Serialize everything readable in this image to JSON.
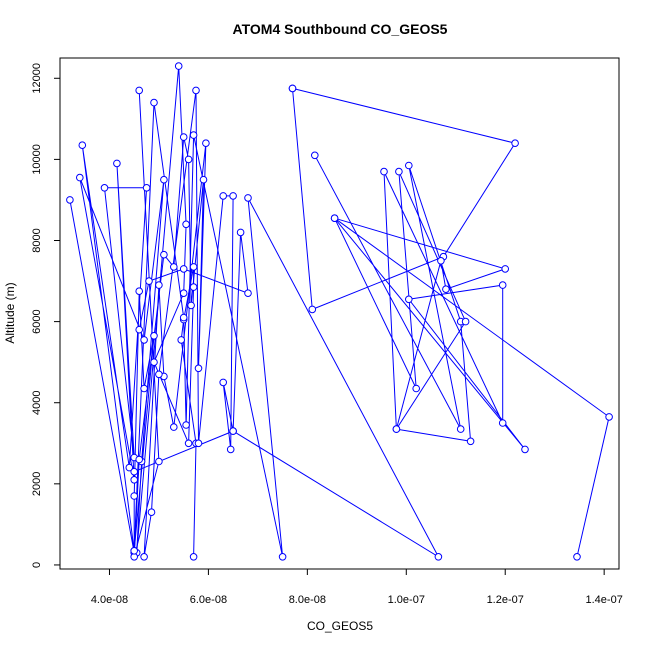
{
  "chart_data": {
    "type": "line",
    "title": "ATOM4 Southbound CO_GEOS5",
    "xlabel": "CO_GEOS5",
    "ylabel": "Altitude (m)",
    "xlim": [
      3e-08,
      1.43e-07
    ],
    "ylim": [
      -100,
      12500
    ],
    "x_ticks": [
      {
        "value": 4e-08,
        "label": "4.0e-08"
      },
      {
        "value": 6e-08,
        "label": "6.0e-08"
      },
      {
        "value": 8e-08,
        "label": "8.0e-08"
      },
      {
        "value": 1e-07,
        "label": "1.0e-07"
      },
      {
        "value": 1.2e-07,
        "label": "1.2e-07"
      },
      {
        "value": 1.4e-07,
        "label": "1.4e-07"
      }
    ],
    "y_ticks": [
      {
        "value": 0,
        "label": "0"
      },
      {
        "value": 2000,
        "label": "2000"
      },
      {
        "value": 4000,
        "label": "4000"
      },
      {
        "value": 6000,
        "label": "6000"
      },
      {
        "value": 8000,
        "label": "8000"
      },
      {
        "value": 10000,
        "label": "10000"
      },
      {
        "value": 12000,
        "label": "12000"
      }
    ],
    "grid": false,
    "legend": "none",
    "line_color": "#0000ff",
    "marker": "open-circle",
    "series": [
      {
        "x": [
          3.2e-08,
          4.5e-08,
          4.5e-08,
          4.6e-08,
          4.7e-08,
          4.9e-08,
          4.5e-08,
          3.45e-08,
          4.4e-08,
          4.75e-08,
          3.9e-08,
          4.5e-08,
          4.15e-08,
          4.5e-08,
          3.4e-08,
          4.7e-08,
          5.1e-08,
          4.65e-08,
          4.55e-08,
          5.4e-08,
          5.55e-08,
          5.5e-08,
          4.9e-08,
          5.6e-08,
          5.7e-08,
          5.7e-08,
          5.5e-08,
          5.45e-08,
          5.75e-08,
          5.7e-08
        ],
        "y": [
          9000,
          300,
          1700,
          6750,
          4350,
          5650,
          350,
          10350,
          2400,
          9300,
          9300,
          2650,
          9900,
          2100,
          9550,
          5550,
          9500,
          2550,
          300,
          12300,
          8400,
          6700,
          5000,
          3000,
          6850,
          7350,
          6050,
          5550,
          3000,
          200
        ]
      },
      {
        "x": [
          4.6e-08,
          5e-08,
          4.5e-08,
          4.6e-08,
          5.1e-08,
          5.3e-08,
          5.5e-08,
          5.6e-08,
          5.65e-08,
          5.9e-08,
          5.8e-08,
          5.95e-08,
          5.3e-08,
          5.1e-08,
          5e-08,
          4.7e-08,
          4.85e-08,
          5e-08,
          5.75e-08,
          5.8e-08,
          6.3e-08,
          6.5e-08,
          6.45e-08,
          6.3e-08,
          6.5e-08,
          6.65e-08,
          6.8e-08,
          5.5e-08,
          4.8e-08,
          4.6e-08
        ],
        "y": [
          11700,
          2550,
          200,
          2600,
          7650,
          7350,
          10550,
          10000,
          6400,
          9500,
          4850,
          10400,
          3400,
          4650,
          6900,
          200,
          1300,
          4700,
          11700,
          3000,
          9100,
          9100,
          2850,
          4500,
          3300,
          8200,
          6700,
          7300,
          7000,
          5800
        ]
      },
      {
        "x": [
          4.5e-08,
          4.9e-08,
          5.5e-08,
          5.55e-08,
          5.7e-08,
          7.5e-08,
          6.8e-08,
          1.065e-07,
          6.5e-08,
          4.5e-08
        ],
        "y": [
          350,
          11400,
          6100,
          3450,
          10600,
          200,
          9050,
          200,
          3300,
          2300
        ]
      },
      {
        "x": [
          7.7e-08,
          1.22e-07,
          1.075e-07,
          8.1e-08,
          7.7e-08
        ],
        "y": [
          11750,
          10400,
          7600,
          6300,
          11750
        ]
      },
      {
        "x": [
          8.15e-08,
          1.11e-07,
          1.005e-07,
          1.11e-07,
          1.13e-07,
          9.8e-08,
          1.12e-07,
          9.85e-08,
          1.02e-07,
          8.55e-08,
          1.24e-07,
          1.005e-07,
          1.195e-07,
          1.195e-07,
          9.55e-08,
          9.8e-08,
          1.07e-07,
          1.08e-07,
          1.2e-07,
          8.55e-08,
          1.41e-07,
          1.345e-07
        ],
        "y": [
          10100,
          3350,
          9850,
          6000,
          3050,
          3350,
          6000,
          9700,
          4350,
          8550,
          2850,
          6550,
          6900,
          3500,
          9700,
          3350,
          7500,
          6800,
          7300,
          8550,
          3650,
          200
        ]
      }
    ]
  }
}
